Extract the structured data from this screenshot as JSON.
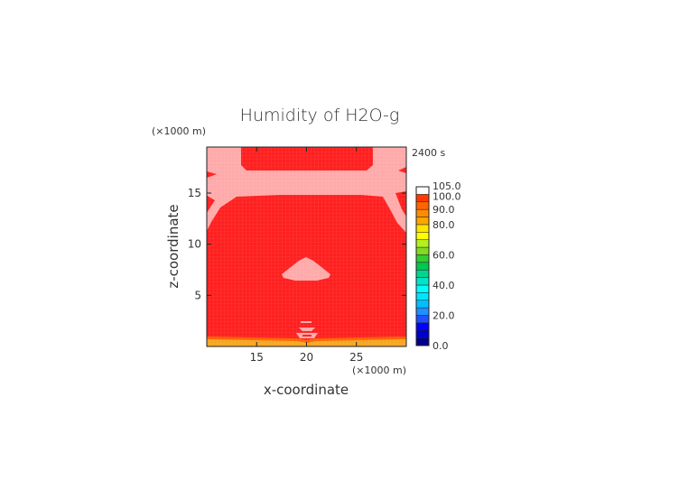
{
  "chart_data": {
    "type": "heatmap",
    "title": "Humidity of H2O-g",
    "time_label": "2400 s",
    "xlabel": "x-coordinate",
    "ylabel": "z-coordinate",
    "x_unit": "(×1000 m)",
    "y_unit": "(×1000 m)",
    "xlim": [
      10,
      30
    ],
    "ylim": [
      0,
      19.5
    ],
    "x_ticks": [
      "15",
      "20",
      "25"
    ],
    "x_tick_values": [
      15,
      20,
      25
    ],
    "y_ticks": [
      "5",
      "10",
      "15"
    ],
    "y_tick_values": [
      5,
      10,
      15
    ],
    "colorbar": {
      "ticks": [
        "105.0",
        "100.0",
        "90.0",
        "80.0",
        "60.0",
        "40.0",
        "20.0",
        "0.0"
      ],
      "tick_values": [
        105,
        100,
        90,
        80,
        60,
        40,
        20,
        0
      ],
      "range": [
        0,
        105
      ],
      "levels": [
        {
          "from": 0,
          "to": 5,
          "color": "#00008b"
        },
        {
          "from": 5,
          "to": 10,
          "color": "#0000cd"
        },
        {
          "from": 10,
          "to": 15,
          "color": "#0000ff"
        },
        {
          "from": 15,
          "to": 20,
          "color": "#1e50ff"
        },
        {
          "from": 20,
          "to": 25,
          "color": "#1e90ff"
        },
        {
          "from": 25,
          "to": 30,
          "color": "#00bfff"
        },
        {
          "from": 30,
          "to": 35,
          "color": "#00e5ff"
        },
        {
          "from": 35,
          "to": 40,
          "color": "#00ffff"
        },
        {
          "from": 40,
          "to": 45,
          "color": "#00e5c8"
        },
        {
          "from": 45,
          "to": 50,
          "color": "#00d68f"
        },
        {
          "from": 50,
          "to": 55,
          "color": "#00c850"
        },
        {
          "from": 55,
          "to": 60,
          "color": "#32cd32"
        },
        {
          "from": 60,
          "to": 65,
          "color": "#7fdc1e"
        },
        {
          "from": 65,
          "to": 70,
          "color": "#b4f01e"
        },
        {
          "from": 70,
          "to": 75,
          "color": "#ffff00"
        },
        {
          "from": 75,
          "to": 80,
          "color": "#ffe600"
        },
        {
          "from": 80,
          "to": 85,
          "color": "#ffa500"
        },
        {
          "from": 85,
          "to": 90,
          "color": "#ff8c00"
        },
        {
          "from": 90,
          "to": 95,
          "color": "#ff6400"
        },
        {
          "from": 95,
          "to": 100,
          "color": "#ff3c00"
        },
        {
          "from": 100,
          "to": 105,
          "color": "#ffffff"
        }
      ]
    },
    "field": {
      "background_level": "95-100",
      "background_color": "#ff2020",
      "supersaturated_color": "#ffaaaa",
      "surface_layer_color": "#f5a623",
      "regions": [
        {
          "name": "upper supersaturated band",
          "z_range": [
            15,
            17.5
          ]
        },
        {
          "name": "upper-left corner patch",
          "x_range": [
            10,
            13.5
          ],
          "z_range": [
            17.5,
            19.5
          ]
        },
        {
          "name": "upper-right corner patch",
          "x_range": [
            26.5,
            30
          ],
          "z_range": [
            17.5,
            19.5
          ]
        },
        {
          "name": "central cloud cap",
          "x_range": [
            17.5,
            22.5
          ],
          "z_range": [
            6.7,
            8.8
          ]
        },
        {
          "name": "near-surface plume",
          "x_range": [
            19,
            21
          ],
          "z_range": [
            0.8,
            2.8
          ]
        },
        {
          "name": "surface layer (80-90)",
          "z_range": [
            0,
            0.6
          ]
        }
      ]
    }
  }
}
